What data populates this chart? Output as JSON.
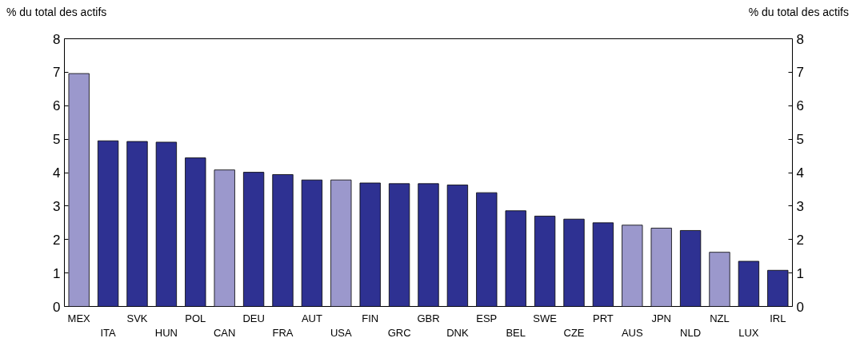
{
  "chart_data": {
    "type": "bar",
    "ylabel": "% du total des actifs",
    "y2label": "% du total des actifs",
    "categories": [
      "MEX",
      "ITA",
      "SVK",
      "HUN",
      "POL",
      "CAN",
      "DEU",
      "FRA",
      "AUT",
      "USA",
      "FIN",
      "GRC",
      "GBR",
      "DNK",
      "ESP",
      "BEL",
      "SWE",
      "CZE",
      "PRT",
      "AUS",
      "JPN",
      "NLD",
      "NZL",
      "LUX",
      "IRL"
    ],
    "values": [
      6.96,
      4.95,
      4.93,
      4.91,
      4.44,
      4.08,
      4.01,
      3.94,
      3.78,
      3.78,
      3.69,
      3.67,
      3.67,
      3.63,
      3.4,
      2.86,
      2.7,
      2.61,
      2.5,
      2.43,
      2.34,
      2.27,
      1.62,
      1.35,
      1.08
    ],
    "colors": [
      "#9b98cc",
      "#2e3192",
      "#2e3192",
      "#2e3192",
      "#2e3192",
      "#9b98cc",
      "#2e3192",
      "#2e3192",
      "#2e3192",
      "#9b98cc",
      "#2e3192",
      "#2e3192",
      "#2e3192",
      "#2e3192",
      "#2e3192",
      "#2e3192",
      "#2e3192",
      "#2e3192",
      "#2e3192",
      "#9b98cc",
      "#9b98cc",
      "#2e3192",
      "#9b98cc",
      "#2e3192",
      "#2e3192"
    ],
    "ylim": [
      0,
      8
    ],
    "yticks": [
      0,
      1,
      2,
      3,
      4,
      5,
      6,
      7,
      8
    ],
    "y2lim": [
      0,
      8
    ],
    "y2ticks": [
      0,
      1,
      2,
      3,
      4,
      5,
      6,
      7,
      8
    ],
    "grid": false
  }
}
